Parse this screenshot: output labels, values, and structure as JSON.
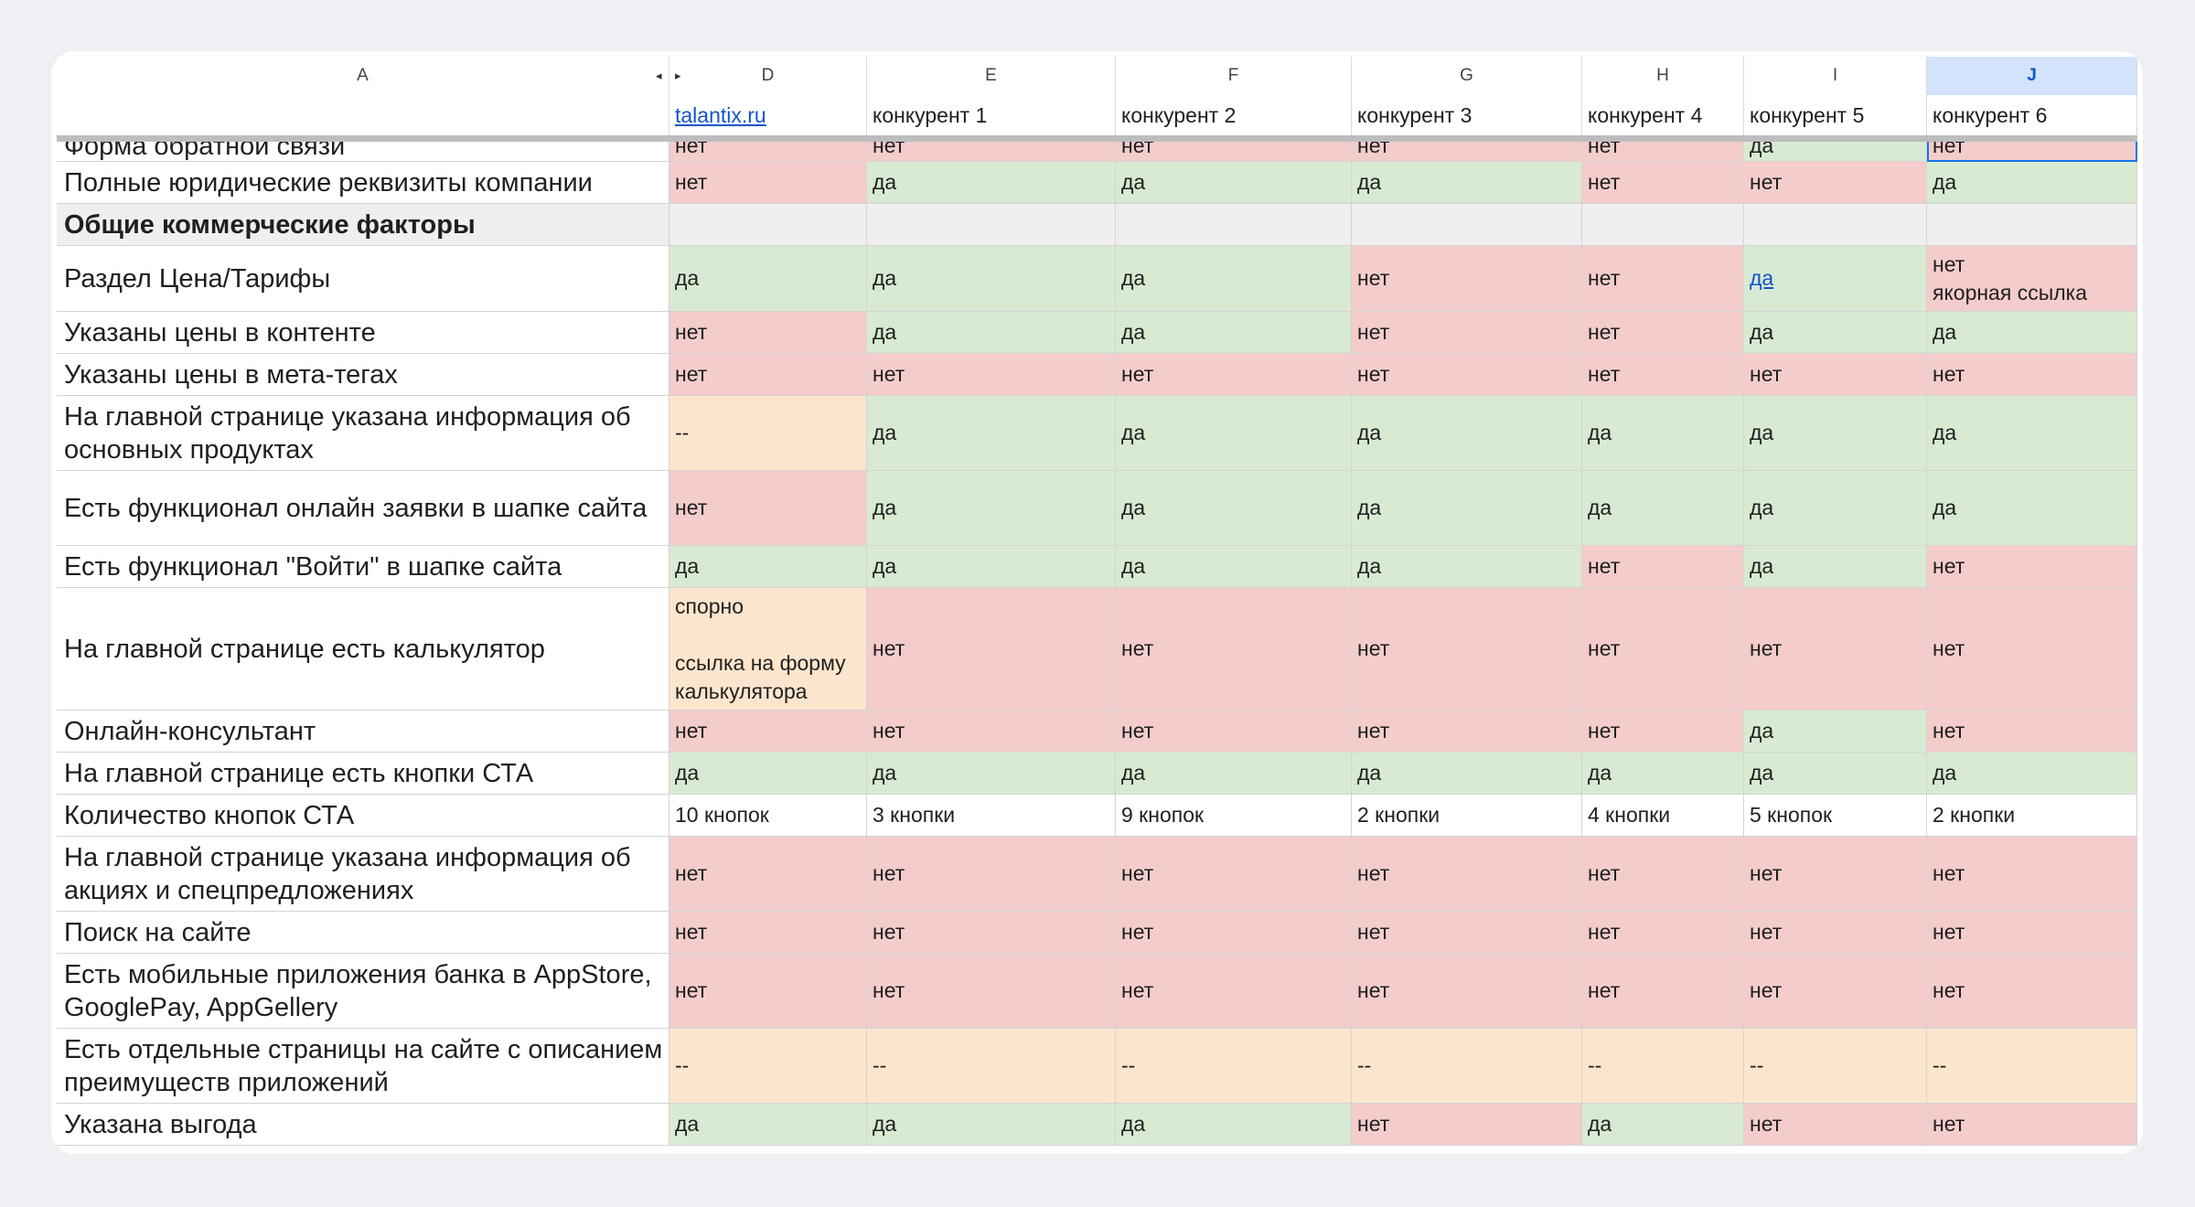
{
  "columns": [
    "A",
    "D",
    "E",
    "F",
    "G",
    "H",
    "I",
    "J"
  ],
  "selected_column": "J",
  "header_row": [
    "",
    "talantix.ru",
    "конкурент 1",
    "конкурент 2",
    "конкурент 3",
    "конкурент 4",
    "конкурент 5",
    "конкурент 6"
  ],
  "rows": [
    {
      "label": "Форма обратной связи",
      "cells": [
        "нет",
        "нет",
        "нет",
        "нет",
        "нет",
        "да",
        "нет"
      ]
    },
    {
      "label": "Полные юридические реквизиты компании",
      "cells": [
        "нет",
        "да",
        "да",
        "да",
        "нет",
        "нет",
        "да"
      ]
    },
    {
      "label": "Общие коммерческие факторы",
      "section": true,
      "cells": [
        "",
        "",
        "",
        "",
        "",
        "",
        ""
      ]
    },
    {
      "label": "Раздел Цена/Тарифы",
      "cells": [
        "да",
        "да",
        "да",
        "нет",
        "нет",
        "да",
        "нет\nякорная ссылка"
      ]
    },
    {
      "label": "Указаны цены в контенте",
      "cells": [
        "нет",
        "да",
        "да",
        "нет",
        "нет",
        "да",
        "да"
      ]
    },
    {
      "label": "Указаны цены в мета-тегах",
      "cells": [
        "нет",
        "нет",
        "нет",
        "нет",
        "нет",
        "нет",
        "нет"
      ]
    },
    {
      "label": "На главной странице указана информация об основных продуктах",
      "cells": [
        "--",
        "да",
        "да",
        "да",
        "да",
        "да",
        "да"
      ]
    },
    {
      "label": "Есть функционал онлайн заявки в шапке сайта",
      "cells": [
        "нет",
        "да",
        "да",
        "да",
        "да",
        "да",
        "да"
      ]
    },
    {
      "label": "Есть функционал \"Войти\" в шапке сайта",
      "cells": [
        "да",
        "да",
        "да",
        "да",
        "нет",
        "да",
        "нет"
      ]
    },
    {
      "label": "На главной странице есть калькулятор",
      "cells": [
        "спорно\n\nссылка на форму калькулятора",
        "нет",
        "нет",
        "нет",
        "нет",
        "нет",
        "нет"
      ]
    },
    {
      "label": "Онлайн-консультант",
      "cells": [
        "нет",
        "нет",
        "нет",
        "нет",
        "нет",
        "да",
        "нет"
      ]
    },
    {
      "label": "На главной странице есть кнопки СТА",
      "cells": [
        "да",
        "да",
        "да",
        "да",
        "да",
        "да",
        "да"
      ]
    },
    {
      "label": "Количество кнопок СТА",
      "cells": [
        "10 кнопок",
        "3 кнопки",
        "9 кнопок",
        "2 кнопки",
        "4 кнопки",
        "5 кнопок",
        "2 кнопки"
      ]
    },
    {
      "label": "На главной странице указана информация об акциях и спецпредложениях",
      "cells": [
        "нет",
        "нет",
        "нет",
        "нет",
        "нет",
        "нет",
        "нет"
      ]
    },
    {
      "label": "Поиск на сайте",
      "cells": [
        "нет",
        "нет",
        "нет",
        "нет",
        "нет",
        "нет",
        "нет"
      ]
    },
    {
      "label": "Есть мобильные приложения банка в AppStore, GooglePay, AppGellery",
      "cells": [
        "нет",
        "нет",
        "нет",
        "нет",
        "нет",
        "нет",
        "нет"
      ]
    },
    {
      "label": "Есть отдельные страницы на сайте с описанием преимуществ приложений",
      "cells": [
        "--",
        "--",
        "--",
        "--",
        "--",
        "--",
        "--"
      ]
    },
    {
      "label": "Указана выгода",
      "cells": [
        "да",
        "да",
        "да",
        "нет",
        "да",
        "нет",
        "нет"
      ]
    }
  ]
}
